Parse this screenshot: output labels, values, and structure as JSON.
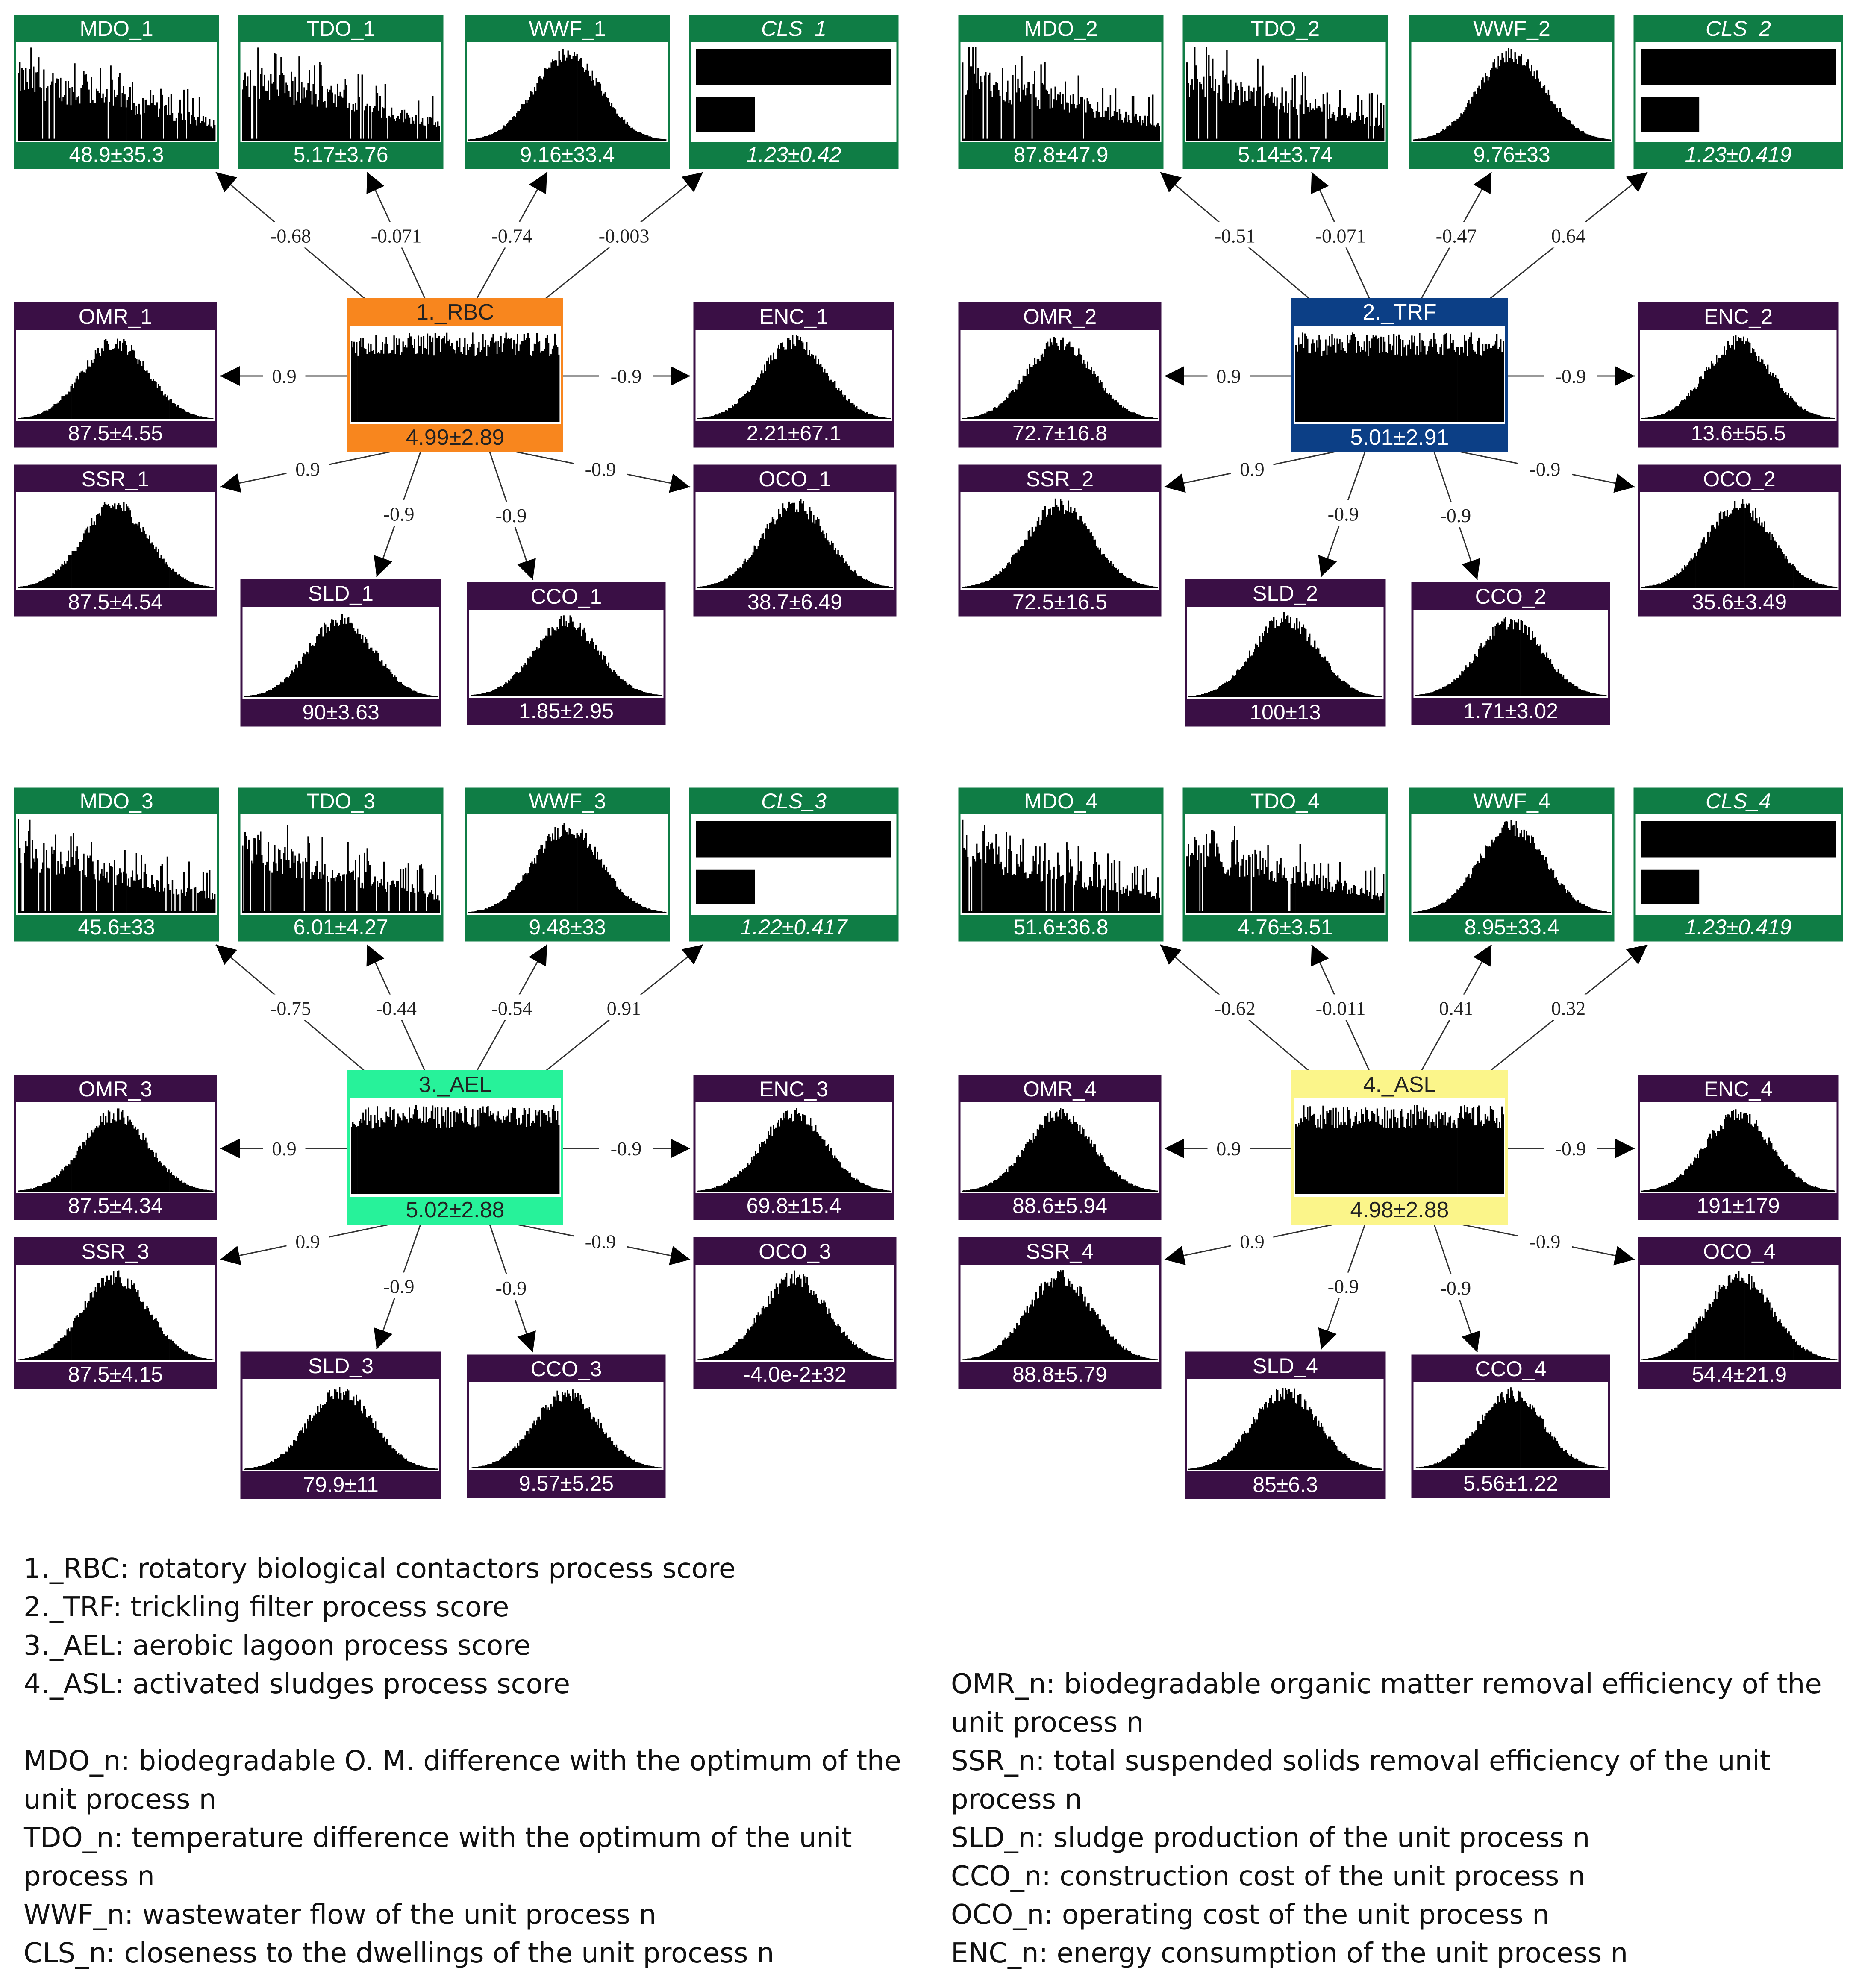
{
  "colors": {
    "green": "#0f7d45",
    "purple": "#3a0f45",
    "rbc": "#f8861e",
    "trf": "#0c3f86",
    "ael": "#27f29a",
    "asl": "#fbf58a",
    "bars": "#000000",
    "edge": "#333333"
  },
  "panels": [
    {
      "hub": {
        "title": "1._RBC",
        "value": "4.99±2.89",
        "color_key": "rbc",
        "light_text": false
      },
      "nodes": {
        "MDO": {
          "title": "MDO_1",
          "value": "48.9±35.3",
          "shape": "decay"
        },
        "TDO": {
          "title": "TDO_1",
          "value": "5.17±3.76",
          "shape": "decay"
        },
        "WWF": {
          "title": "WWF_1",
          "value": "9.16±33.4",
          "shape": "normal"
        },
        "CLS": {
          "title": "CLS_1",
          "value": "1.23±0.42",
          "shape": "bars2",
          "italic": true
        },
        "OMR": {
          "title": "OMR_1",
          "value": "87.5±4.55",
          "shape": "normal"
        },
        "ENC": {
          "title": "ENC_1",
          "value": "2.21±67.1",
          "shape": "normal"
        },
        "SSR": {
          "title": "SSR_1",
          "value": "87.5±4.54",
          "shape": "normal"
        },
        "OCO": {
          "title": "OCO_1",
          "value": "38.7±6.49",
          "shape": "normal"
        },
        "SLD": {
          "title": "SLD_1",
          "value": "90±3.63",
          "shape": "normal"
        },
        "CCO": {
          "title": "CCO_1",
          "value": "1.85±2.95",
          "shape": "normal"
        }
      },
      "weights": {
        "MDO": "-0.68",
        "TDO": "-0.071",
        "WWF": "-0.74",
        "CLS": "-0.003",
        "OMR": "0.9",
        "ENC": "-0.9",
        "SSR": "0.9",
        "OCO": "-0.9",
        "SLD": "-0.9",
        "CCO": "-0.9"
      }
    },
    {
      "hub": {
        "title": "2._TRF",
        "value": "5.01±2.91",
        "color_key": "trf",
        "light_text": true
      },
      "nodes": {
        "MDO": {
          "title": "MDO_2",
          "value": "87.8±47.9",
          "shape": "decay"
        },
        "TDO": {
          "title": "TDO_2",
          "value": "5.14±3.74",
          "shape": "decay"
        },
        "WWF": {
          "title": "WWF_2",
          "value": "9.76±33",
          "shape": "normal"
        },
        "CLS": {
          "title": "CLS_2",
          "value": "1.23±0.419",
          "shape": "bars2",
          "italic": true
        },
        "OMR": {
          "title": "OMR_2",
          "value": "72.7±16.8",
          "shape": "normal"
        },
        "ENC": {
          "title": "ENC_2",
          "value": "13.6±55.5",
          "shape": "normal"
        },
        "SSR": {
          "title": "SSR_2",
          "value": "72.5±16.5",
          "shape": "normal"
        },
        "OCO": {
          "title": "OCO_2",
          "value": "35.6±3.49",
          "shape": "normal"
        },
        "SLD": {
          "title": "SLD_2",
          "value": "100±13",
          "shape": "normal"
        },
        "CCO": {
          "title": "CCO_2",
          "value": "1.71±3.02",
          "shape": "normal"
        }
      },
      "weights": {
        "MDO": "-0.51",
        "TDO": "-0.071",
        "WWF": "-0.47",
        "CLS": "0.64",
        "OMR": "0.9",
        "ENC": "-0.9",
        "SSR": "0.9",
        "OCO": "-0.9",
        "SLD": "-0.9",
        "CCO": "-0.9"
      }
    },
    {
      "hub": {
        "title": "3._AEL",
        "value": "5.02±2.88",
        "color_key": "ael",
        "light_text": false
      },
      "nodes": {
        "MDO": {
          "title": "MDO_3",
          "value": "45.6±33",
          "shape": "decay"
        },
        "TDO": {
          "title": "TDO_3",
          "value": "6.01±4.27",
          "shape": "decay"
        },
        "WWF": {
          "title": "WWF_3",
          "value": "9.48±33",
          "shape": "normal"
        },
        "CLS": {
          "title": "CLS_3",
          "value": "1.22±0.417",
          "shape": "bars2",
          "italic": true
        },
        "OMR": {
          "title": "OMR_3",
          "value": "87.5±4.34",
          "shape": "normal"
        },
        "ENC": {
          "title": "ENC_3",
          "value": "69.8±15.4",
          "shape": "normal"
        },
        "SSR": {
          "title": "SSR_3",
          "value": "87.5±4.15",
          "shape": "normal"
        },
        "OCO": {
          "title": "OCO_3",
          "value": "-4.0e-2±32",
          "shape": "normal"
        },
        "SLD": {
          "title": "SLD_3",
          "value": "79.9±11",
          "shape": "normal"
        },
        "CCO": {
          "title": "CCO_3",
          "value": "9.57±5.25",
          "shape": "normal"
        }
      },
      "weights": {
        "MDO": "-0.75",
        "TDO": "-0.44",
        "WWF": "-0.54",
        "CLS": "0.91",
        "OMR": "0.9",
        "ENC": "-0.9",
        "SSR": "0.9",
        "OCO": "-0.9",
        "SLD": "-0.9",
        "CCO": "-0.9"
      }
    },
    {
      "hub": {
        "title": "4._ASL",
        "value": "4.98±2.88",
        "color_key": "asl",
        "light_text": false
      },
      "nodes": {
        "MDO": {
          "title": "MDO_4",
          "value": "51.6±36.8",
          "shape": "decay"
        },
        "TDO": {
          "title": "TDO_4",
          "value": "4.76±3.51",
          "shape": "decay"
        },
        "WWF": {
          "title": "WWF_4",
          "value": "8.95±33.4",
          "shape": "normal"
        },
        "CLS": {
          "title": "CLS_4",
          "value": "1.23±0.419",
          "shape": "bars2",
          "italic": true
        },
        "OMR": {
          "title": "OMR_4",
          "value": "88.6±5.94",
          "shape": "normal"
        },
        "ENC": {
          "title": "ENC_4",
          "value": "191±179",
          "shape": "normal"
        },
        "SSR": {
          "title": "SSR_4",
          "value": "88.8±5.79",
          "shape": "normal"
        },
        "OCO": {
          "title": "OCO_4",
          "value": "54.4±21.9",
          "shape": "normal"
        },
        "SLD": {
          "title": "SLD_4",
          "value": "85±6.3",
          "shape": "normal"
        },
        "CCO": {
          "title": "CCO_4",
          "value": "5.56±1.22",
          "shape": "normal"
        }
      },
      "weights": {
        "MDO": "-0.62",
        "TDO": "-0.011",
        "WWF": "0.41",
        "CLS": "0.32",
        "OMR": "0.9",
        "ENC": "-0.9",
        "SSR": "0.9",
        "OCO": "-0.9",
        "SLD": "-0.9",
        "CCO": "-0.9"
      }
    }
  ],
  "legend": {
    "left": [
      "1._RBC: rotatory biological contactors process score",
      "2._TRF: trickling filter process score",
      "3._AEL: aerobic lagoon process score",
      "4._ASL: activated sludges process score",
      "MDO_n: biodegradable O. M. difference with the optimum  of the",
      "unit process n",
      "TDO_n: temperature difference with the optimum  of the unit",
      "process n",
      "WWF_n: wastewater flow of the unit process n",
      "CLS_n: closeness to the dwellings of the unit process n"
    ],
    "right": [
      "OMR_n: biodegradable organic matter removal efficiency of the",
      "unit process n",
      "SSR_n: total suspended solids removal efficiency of the unit",
      "process n",
      "SLD_n: sludge production  of the unit process n",
      "CCO_n: construction cost of the unit process n",
      "OCO_n: operating cost of the unit process n",
      "ENC_n: energy consumption  of the unit process n"
    ]
  }
}
